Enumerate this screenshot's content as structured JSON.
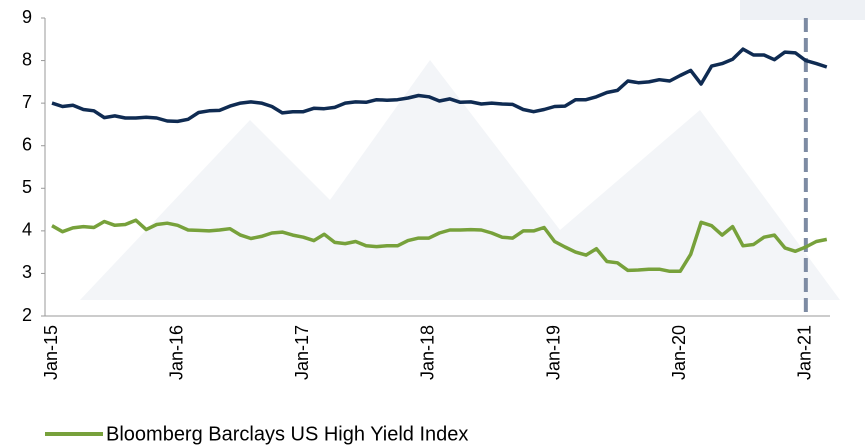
{
  "chart_data": {
    "type": "line",
    "categories": [
      "Jan-15",
      null,
      null,
      null,
      null,
      null,
      null,
      null,
      null,
      null,
      null,
      null,
      "Jan-16",
      null,
      null,
      null,
      null,
      null,
      null,
      null,
      null,
      null,
      null,
      null,
      "Jan-17",
      null,
      null,
      null,
      null,
      null,
      null,
      null,
      null,
      null,
      null,
      null,
      "Jan-18",
      null,
      null,
      null,
      null,
      null,
      null,
      null,
      null,
      null,
      null,
      null,
      "Jan-19",
      null,
      null,
      null,
      null,
      null,
      null,
      null,
      null,
      null,
      null,
      null,
      "Jan-20",
      null,
      null,
      null,
      null,
      null,
      null,
      null,
      null,
      null,
      null,
      null,
      "Jan-21",
      null,
      null
    ],
    "series": [
      {
        "color": "#0f2b52",
        "values": [
          7.0,
          6.92,
          6.95,
          6.85,
          6.82,
          6.66,
          6.7,
          6.65,
          6.65,
          6.67,
          6.65,
          6.58,
          6.57,
          6.62,
          6.78,
          6.82,
          6.83,
          6.93,
          7.0,
          7.03,
          7.0,
          6.92,
          6.77,
          6.8,
          6.8,
          6.88,
          6.87,
          6.9,
          7.0,
          7.03,
          7.02,
          7.08,
          7.07,
          7.08,
          7.12,
          7.18,
          7.15,
          7.05,
          7.1,
          7.02,
          7.03,
          6.98,
          7.0,
          6.98,
          6.97,
          6.85,
          6.8,
          6.85,
          6.92,
          6.93,
          7.08,
          7.08,
          7.15,
          7.25,
          7.3,
          7.52,
          7.48,
          7.5,
          7.55,
          7.52,
          7.65,
          7.77,
          7.45,
          7.87,
          7.93,
          8.03,
          8.27,
          8.13,
          8.13,
          8.02,
          8.2,
          8.18,
          8.0,
          7.93,
          7.85
        ]
      },
      {
        "name": "Bloomberg Barclays US High Yield Index",
        "color": "#77a13b",
        "values": [
          4.12,
          3.98,
          4.07,
          4.1,
          4.08,
          4.22,
          4.13,
          4.15,
          4.25,
          4.03,
          4.15,
          4.18,
          4.13,
          4.02,
          4.01,
          4.0,
          4.02,
          4.05,
          3.9,
          3.82,
          3.87,
          3.95,
          3.97,
          3.9,
          3.85,
          3.77,
          3.92,
          3.73,
          3.7,
          3.75,
          3.65,
          3.63,
          3.65,
          3.65,
          3.77,
          3.83,
          3.83,
          3.95,
          4.02,
          4.02,
          4.03,
          4.02,
          3.95,
          3.85,
          3.83,
          4.0,
          4.0,
          4.08,
          3.75,
          3.62,
          3.5,
          3.43,
          3.58,
          3.28,
          3.25,
          3.07,
          3.08,
          3.1,
          3.1,
          3.05,
          3.05,
          3.45,
          4.2,
          4.12,
          3.9,
          4.1,
          3.65,
          3.68,
          3.85,
          3.9,
          3.6,
          3.52,
          3.62,
          3.75,
          3.8
        ]
      }
    ],
    "ylim": [
      2,
      9
    ],
    "yticks": [
      2,
      3,
      4,
      5,
      6,
      7,
      8,
      9
    ]
  }
}
